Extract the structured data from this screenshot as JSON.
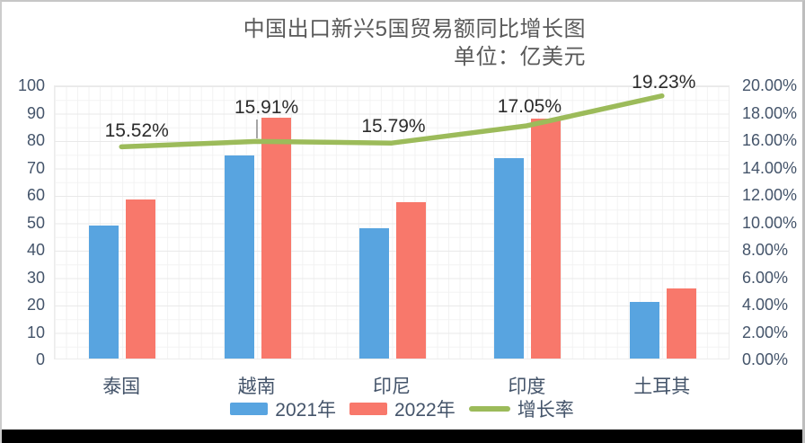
{
  "title": {
    "line1": "中国出口新兴5国贸易额同比增长图",
    "line2": "单位：亿美元"
  },
  "chart_data": {
    "type": "combo",
    "categories": [
      "泰国",
      "越南",
      "印尼",
      "印度",
      "土耳其"
    ],
    "series": [
      {
        "name": "2021年",
        "type": "bar",
        "axis": "left",
        "color": "#58A4E0",
        "values": [
          48.5,
          74,
          47.5,
          73,
          20.5
        ]
      },
      {
        "name": "2022年",
        "type": "bar",
        "axis": "left",
        "color": "#F8786B",
        "values": [
          58,
          88,
          57,
          87.5,
          25.5
        ]
      },
      {
        "name": "增长率",
        "type": "line",
        "axis": "right",
        "color": "#9CBB5A",
        "values": [
          15.52,
          15.91,
          15.79,
          17.05,
          19.23
        ],
        "point_labels": [
          "15.52%",
          "15.91%",
          "15.79%",
          "17.05%",
          "19.23%"
        ]
      }
    ],
    "left_axis": {
      "min": 0,
      "max": 100,
      "step": 10,
      "tick_labels": [
        "100",
        "90",
        "80",
        "70",
        "60",
        "50",
        "40",
        "30",
        "20",
        "10",
        "0"
      ]
    },
    "right_axis": {
      "min": 0,
      "max": 20,
      "step": 2,
      "tick_labels": [
        "20.00%",
        "18.00%",
        "16.00%",
        "14.00%",
        "12.00%",
        "10.00%",
        "8.00%",
        "6.00%",
        "4.00%",
        "2.00%",
        "0.00%"
      ]
    },
    "legend": [
      {
        "label": "2021年",
        "swatch": "rect",
        "color": "#58A4E0"
      },
      {
        "label": "2022年",
        "swatch": "rect",
        "color": "#F8786B"
      },
      {
        "label": "增长率",
        "swatch": "line",
        "color": "#9CBB5A"
      }
    ],
    "legend_position": "bottom",
    "grid": true
  },
  "colors": {
    "title_text": "#595959",
    "axis_label": "#44546A",
    "data_label": "#2b2b2b",
    "leader_line": "#a6a6a6",
    "bottom_edge": "#000000"
  }
}
